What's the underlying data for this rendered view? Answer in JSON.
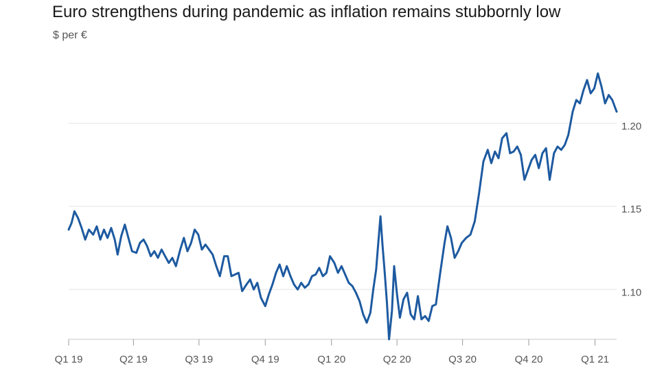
{
  "chart_data": {
    "type": "line",
    "title": "Euro strengthens during pandemic as inflation remains stubbornly low",
    "subtitle": "$ per €",
    "xlabel": "",
    "ylabel": "",
    "x_range": [
      "2019-01-01",
      "2021-01-31"
    ],
    "ylim": [
      1.07,
      1.235
    ],
    "y_ticks": [
      1.1,
      1.15,
      1.2
    ],
    "y_tick_labels": [
      "1.10",
      "1.15",
      "1.20"
    ],
    "x_ticks": [
      "2019-01-01",
      "2019-04-01",
      "2019-07-01",
      "2019-10-01",
      "2020-01-01",
      "2020-04-01",
      "2020-07-01",
      "2020-10-01",
      "2021-01-01"
    ],
    "x_tick_labels": [
      "Q1 19",
      "Q2 19",
      "Q3 19",
      "Q4 19",
      "Q1 20",
      "Q2 20",
      "Q3 20",
      "Q4 20",
      "Q1 21"
    ],
    "grid": true,
    "line_color": "#1d5aa0",
    "series": [
      {
        "name": "",
        "points": [
          [
            "2019-01-01",
            1.136
          ],
          [
            "2019-01-05",
            1.14
          ],
          [
            "2019-01-09",
            1.147
          ],
          [
            "2019-01-14",
            1.143
          ],
          [
            "2019-01-19",
            1.137
          ],
          [
            "2019-01-24",
            1.13
          ],
          [
            "2019-01-29",
            1.136
          ],
          [
            "2019-02-04",
            1.133
          ],
          [
            "2019-02-09",
            1.138
          ],
          [
            "2019-02-14",
            1.13
          ],
          [
            "2019-02-19",
            1.136
          ],
          [
            "2019-02-24",
            1.131
          ],
          [
            "2019-03-01",
            1.137
          ],
          [
            "2019-03-06",
            1.13
          ],
          [
            "2019-03-10",
            1.121
          ],
          [
            "2019-03-15",
            1.132
          ],
          [
            "2019-03-20",
            1.139
          ],
          [
            "2019-03-25",
            1.131
          ],
          [
            "2019-03-30",
            1.123
          ],
          [
            "2019-04-05",
            1.122
          ],
          [
            "2019-04-10",
            1.128
          ],
          [
            "2019-04-15",
            1.13
          ],
          [
            "2019-04-20",
            1.126
          ],
          [
            "2019-04-25",
            1.12
          ],
          [
            "2019-04-30",
            1.123
          ],
          [
            "2019-05-05",
            1.119
          ],
          [
            "2019-05-10",
            1.124
          ],
          [
            "2019-05-15",
            1.12
          ],
          [
            "2019-05-20",
            1.116
          ],
          [
            "2019-05-25",
            1.119
          ],
          [
            "2019-05-30",
            1.114
          ],
          [
            "2019-06-05",
            1.124
          ],
          [
            "2019-06-10",
            1.131
          ],
          [
            "2019-06-15",
            1.123
          ],
          [
            "2019-06-20",
            1.128
          ],
          [
            "2019-06-25",
            1.136
          ],
          [
            "2019-06-30",
            1.133
          ],
          [
            "2019-07-05",
            1.124
          ],
          [
            "2019-07-10",
            1.127
          ],
          [
            "2019-07-15",
            1.124
          ],
          [
            "2019-07-20",
            1.121
          ],
          [
            "2019-07-25",
            1.114
          ],
          [
            "2019-07-30",
            1.108
          ],
          [
            "2019-08-05",
            1.12
          ],
          [
            "2019-08-10",
            1.12
          ],
          [
            "2019-08-15",
            1.108
          ],
          [
            "2019-08-20",
            1.109
          ],
          [
            "2019-08-25",
            1.11
          ],
          [
            "2019-08-30",
            1.099
          ],
          [
            "2019-09-05",
            1.103
          ],
          [
            "2019-09-10",
            1.106
          ],
          [
            "2019-09-15",
            1.1
          ],
          [
            "2019-09-20",
            1.104
          ],
          [
            "2019-09-25",
            1.095
          ],
          [
            "2019-10-01",
            1.09
          ],
          [
            "2019-10-06",
            1.097
          ],
          [
            "2019-10-11",
            1.103
          ],
          [
            "2019-10-16",
            1.11
          ],
          [
            "2019-10-21",
            1.115
          ],
          [
            "2019-10-26",
            1.108
          ],
          [
            "2019-10-31",
            1.114
          ],
          [
            "2019-11-05",
            1.108
          ],
          [
            "2019-11-10",
            1.103
          ],
          [
            "2019-11-15",
            1.1
          ],
          [
            "2019-11-20",
            1.104
          ],
          [
            "2019-11-25",
            1.101
          ],
          [
            "2019-11-30",
            1.103
          ],
          [
            "2019-12-05",
            1.108
          ],
          [
            "2019-12-10",
            1.109
          ],
          [
            "2019-12-15",
            1.113
          ],
          [
            "2019-12-20",
            1.108
          ],
          [
            "2019-12-25",
            1.11
          ],
          [
            "2019-12-30",
            1.12
          ],
          [
            "2020-01-05",
            1.116
          ],
          [
            "2020-01-10",
            1.11
          ],
          [
            "2020-01-15",
            1.114
          ],
          [
            "2020-01-20",
            1.109
          ],
          [
            "2020-01-25",
            1.104
          ],
          [
            "2020-01-30",
            1.102
          ],
          [
            "2020-02-04",
            1.098
          ],
          [
            "2020-02-09",
            1.093
          ],
          [
            "2020-02-14",
            1.085
          ],
          [
            "2020-02-19",
            1.08
          ],
          [
            "2020-02-24",
            1.086
          ],
          [
            "2020-02-28",
            1.1
          ],
          [
            "2020-03-03",
            1.112
          ],
          [
            "2020-03-06",
            1.128
          ],
          [
            "2020-03-09",
            1.144
          ],
          [
            "2020-03-12",
            1.126
          ],
          [
            "2020-03-15",
            1.11
          ],
          [
            "2020-03-18",
            1.092
          ],
          [
            "2020-03-21",
            1.07
          ],
          [
            "2020-03-25",
            1.087
          ],
          [
            "2020-03-28",
            1.114
          ],
          [
            "2020-04-01",
            1.097
          ],
          [
            "2020-04-05",
            1.083
          ],
          [
            "2020-04-10",
            1.094
          ],
          [
            "2020-04-15",
            1.098
          ],
          [
            "2020-04-20",
            1.085
          ],
          [
            "2020-04-25",
            1.082
          ],
          [
            "2020-04-30",
            1.096
          ],
          [
            "2020-05-05",
            1.082
          ],
          [
            "2020-05-10",
            1.084
          ],
          [
            "2020-05-15",
            1.081
          ],
          [
            "2020-05-20",
            1.09
          ],
          [
            "2020-05-25",
            1.091
          ],
          [
            "2020-05-31",
            1.11
          ],
          [
            "2020-06-06",
            1.128
          ],
          [
            "2020-06-10",
            1.138
          ],
          [
            "2020-06-15",
            1.131
          ],
          [
            "2020-06-20",
            1.119
          ],
          [
            "2020-06-25",
            1.123
          ],
          [
            "2020-06-30",
            1.128
          ],
          [
            "2020-07-06",
            1.131
          ],
          [
            "2020-07-12",
            1.133
          ],
          [
            "2020-07-18",
            1.141
          ],
          [
            "2020-07-24",
            1.158
          ],
          [
            "2020-07-30",
            1.177
          ],
          [
            "2020-08-05",
            1.184
          ],
          [
            "2020-08-10",
            1.176
          ],
          [
            "2020-08-15",
            1.183
          ],
          [
            "2020-08-20",
            1.179
          ],
          [
            "2020-08-25",
            1.191
          ],
          [
            "2020-08-31",
            1.194
          ],
          [
            "2020-09-05",
            1.182
          ],
          [
            "2020-09-10",
            1.183
          ],
          [
            "2020-09-15",
            1.186
          ],
          [
            "2020-09-20",
            1.181
          ],
          [
            "2020-09-25",
            1.166
          ],
          [
            "2020-09-30",
            1.172
          ],
          [
            "2020-10-05",
            1.178
          ],
          [
            "2020-10-10",
            1.181
          ],
          [
            "2020-10-15",
            1.173
          ],
          [
            "2020-10-20",
            1.182
          ],
          [
            "2020-10-25",
            1.185
          ],
          [
            "2020-10-30",
            1.166
          ],
          [
            "2020-11-05",
            1.182
          ],
          [
            "2020-11-10",
            1.186
          ],
          [
            "2020-11-15",
            1.184
          ],
          [
            "2020-11-20",
            1.187
          ],
          [
            "2020-11-25",
            1.193
          ],
          [
            "2020-12-01",
            1.207
          ],
          [
            "2020-12-06",
            1.214
          ],
          [
            "2020-12-11",
            1.212
          ],
          [
            "2020-12-16",
            1.22
          ],
          [
            "2020-12-21",
            1.226
          ],
          [
            "2020-12-26",
            1.218
          ],
          [
            "2020-12-31",
            1.221
          ],
          [
            "2021-01-05",
            1.23
          ],
          [
            "2021-01-10",
            1.222
          ],
          [
            "2021-01-15",
            1.212
          ],
          [
            "2021-01-20",
            1.217
          ],
          [
            "2021-01-25",
            1.214
          ],
          [
            "2021-01-31",
            1.207
          ]
        ]
      }
    ]
  }
}
